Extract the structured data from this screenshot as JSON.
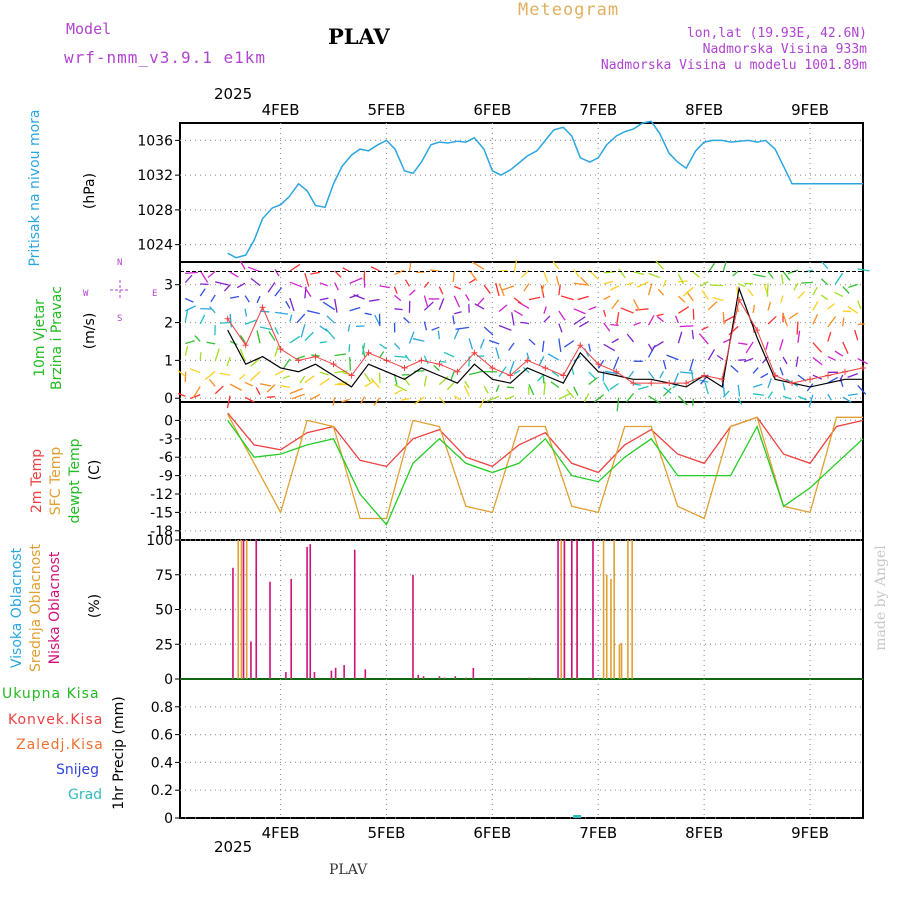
{
  "header": {
    "model_label": "Model",
    "model_name": "wrf-nmm_v3.9.1 e1km",
    "station": "PLAV",
    "meteogram": "Meteogram",
    "lonlat": "lon,lat (19.93E, 42.6N)",
    "elev": "Nadmorska Visina 933m",
    "elev_model": "Nadmorska Visina u modelu 1001.89m"
  },
  "footer": {
    "station": "PLAV",
    "credit": "made by Angel"
  },
  "colors": {
    "pressure": "#2aa6e0",
    "temp": "#ee4040",
    "sfc": "#e0a030",
    "dew": "#22cc22",
    "wind_speed": "#000000",
    "gust": "#ee4040",
    "high_cloud": "#2aa6e0",
    "mid_cloud": "#e0a030",
    "low_cloud": "#d0107a",
    "purple": "#b044d0"
  },
  "chart_data": [
    {
      "type": "line",
      "panel": "pressure",
      "ylabel_main": "Pritisak na nivou mora",
      "ylabel_unit": "(hPa)",
      "yticks": [
        1024,
        1028,
        1032,
        1036
      ],
      "ylim": [
        1022,
        1038
      ],
      "x": [
        0,
        0.08,
        0.17,
        0.25,
        0.33,
        0.42,
        0.5,
        0.58,
        0.67,
        0.75,
        0.83,
        0.92,
        1.0,
        1.08,
        1.17,
        1.25,
        1.33,
        1.42,
        1.5,
        1.58,
        1.67,
        1.75,
        1.83,
        1.92,
        2.0,
        2.08,
        2.17,
        2.25,
        2.33,
        2.42,
        2.5,
        2.58,
        2.67,
        2.75,
        2.83,
        2.92,
        3.0,
        3.08,
        3.17,
        3.25,
        3.33,
        3.42,
        3.5,
        3.58,
        3.67,
        3.75,
        3.83,
        3.92,
        4.0,
        4.08,
        4.17,
        4.25,
        4.33,
        4.42,
        4.5,
        4.58,
        4.67,
        4.75,
        4.83,
        4.92,
        5.0,
        5.08,
        5.17,
        5.25,
        5.33,
        5.42,
        5.5,
        5.58,
        5.67,
        5.75,
        5.83,
        5.92,
        6.0
      ],
      "series": [
        {
          "name": "Pritisak na nivou mora",
          "color": "pressure",
          "values": [
            1023,
            1022.5,
            1022.8,
            1024.5,
            1027,
            1028.2,
            1028.6,
            1029.5,
            1031,
            1030.2,
            1028.5,
            1028.3,
            1031,
            1033,
            1034.3,
            1035,
            1034.8,
            1035.5,
            1036,
            1035,
            1032.5,
            1032.2,
            1033.5,
            1035.5,
            1035.8,
            1035.7,
            1035.9,
            1035.8,
            1036.3,
            1035,
            1032.5,
            1032,
            1032.6,
            1033.4,
            1034.2,
            1034.8,
            1036,
            1037.2,
            1037.5,
            1036.5,
            1034,
            1033.5,
            1034,
            1035.5,
            1036.5,
            1037,
            1037.3,
            1038,
            1038.2,
            1036.8,
            1034.5,
            1033.5,
            1032.8,
            1034.8,
            1035.8,
            1036,
            1036,
            1035.8,
            1035.9,
            1036,
            1035.8,
            1036,
            1035,
            1033,
            1031,
            1031,
            1031,
            1031,
            1031,
            1031,
            1031,
            1031,
            1031
          ]
        }
      ]
    },
    {
      "type": "line",
      "panel": "wind",
      "ylabel_main": "10m Vjetar",
      "ylabel_sub": "Brzina i Pravac",
      "ylabel_unit": "(m/s)",
      "compass": {
        "n": "N",
        "s": "S",
        "e": "E",
        "w": "W"
      },
      "yticks": [
        0,
        1,
        2,
        3
      ],
      "ylim": [
        -0.1,
        3.6
      ],
      "x": [
        0,
        0.17,
        0.33,
        0.5,
        0.67,
        0.83,
        1.0,
        1.17,
        1.33,
        1.5,
        1.67,
        1.83,
        2.0,
        2.17,
        2.33,
        2.5,
        2.67,
        2.83,
        3.0,
        3.17,
        3.33,
        3.5,
        3.67,
        3.83,
        4.0,
        4.17,
        4.33,
        4.5,
        4.67,
        4.83,
        5.0,
        5.17,
        5.33,
        5.5,
        5.67,
        5.83,
        6.0
      ],
      "series": [
        {
          "name": "wind speed",
          "color": "wind_speed",
          "values": [
            1.8,
            0.9,
            1.1,
            0.8,
            0.7,
            0.9,
            0.6,
            0.3,
            0.9,
            0.7,
            0.5,
            0.8,
            0.6,
            0.4,
            0.9,
            0.5,
            0.4,
            0.8,
            0.6,
            0.4,
            1.2,
            0.7,
            0.6,
            0.5,
            0.5,
            0.4,
            0.3,
            0.6,
            0.3,
            2.9,
            1.6,
            0.5,
            0.4,
            0.3,
            0.4,
            0.5,
            0.5
          ]
        },
        {
          "name": "gust",
          "color": "gust",
          "values": [
            2.1,
            1.4,
            2.4,
            1.3,
            1.0,
            1.1,
            0.9,
            0.6,
            1.2,
            1.0,
            0.8,
            1.0,
            0.9,
            0.7,
            1.2,
            0.8,
            0.6,
            1.0,
            0.8,
            0.6,
            1.4,
            0.9,
            0.7,
            0.4,
            0.4,
            0.4,
            0.4,
            0.6,
            0.5,
            2.6,
            1.8,
            0.6,
            0.4,
            0.5,
            0.6,
            0.7,
            0.8
          ]
        }
      ]
    },
    {
      "type": "line",
      "panel": "temperature",
      "ylabel_main": "2m Temp",
      "ylabel_sub": "SFC Temp",
      "ylabel_sub2": "dewpt Temp",
      "ylabel_unit": "(C)",
      "yticks": [
        0,
        -3,
        -6,
        -9,
        -12,
        -15,
        -18
      ],
      "ylim": [
        -19.5,
        3
      ],
      "x": [
        0,
        0.25,
        0.5,
        0.75,
        1.0,
        1.25,
        1.5,
        1.75,
        2.0,
        2.25,
        2.5,
        2.75,
        3.0,
        3.25,
        3.5,
        3.75,
        4.0,
        4.25,
        4.5,
        4.75,
        5.0,
        5.25,
        5.5,
        5.75,
        6.0
      ],
      "series": [
        {
          "name": "2m Temp",
          "color": "temp",
          "values": [
            1.2,
            -4,
            -4.8,
            -2,
            -1,
            -6.5,
            -7.5,
            -3,
            -1.5,
            -6,
            -7.5,
            -4,
            -2,
            -7,
            -8.5,
            -4,
            -1.5,
            -5.5,
            -7,
            -1,
            0.5,
            -5.5,
            -7,
            -1,
            0
          ]
        },
        {
          "name": "SFC Temp",
          "color": "sfc",
          "values": [
            1,
            -7,
            -15,
            0,
            -1,
            -16,
            -16,
            0,
            -1,
            -14,
            -15,
            -1,
            -1,
            -14,
            -15,
            -1,
            -1,
            -14,
            -16,
            -1,
            0.5,
            -14,
            -15,
            0.5,
            0.5
          ]
        },
        {
          "name": "dewpt Temp",
          "color": "dew",
          "values": [
            0,
            -6,
            -5.5,
            -4,
            -3,
            -12,
            -17,
            -7,
            -3,
            -7,
            -8.5,
            -7,
            -3,
            -9,
            -10,
            -6,
            -3,
            -9,
            -9,
            -9,
            -1,
            -14,
            -11,
            -7,
            -3
          ]
        }
      ]
    },
    {
      "type": "bar",
      "panel": "cloud",
      "ylabel_main": "Visoka Oblacnost",
      "ylabel_sub": "Srednja Oblacnost",
      "ylabel_sub2": "Niska Oblacnost",
      "ylabel_unit": "(%)",
      "yticks": [
        0,
        25,
        50,
        75,
        100
      ],
      "ylim": [
        0,
        100
      ],
      "series": [
        {
          "name": "Srednja Oblacnost",
          "color": "mid_cloud",
          "x": [
            0.1,
            0.13,
            0.18,
            3.15,
            3.18,
            3.25,
            3.3,
            3.55,
            3.58,
            3.62,
            3.65,
            3.7,
            3.72,
            3.78,
            3.82
          ],
          "values": [
            100,
            100,
            100,
            100,
            100,
            100,
            100,
            100,
            75,
            72,
            100,
            25,
            26,
            100,
            100
          ]
        },
        {
          "name": "Niska Oblacnost",
          "color": "low_cloud",
          "x": [
            0.05,
            0.15,
            0.22,
            0.27,
            0.4,
            0.55,
            0.6,
            0.75,
            0.78,
            0.82,
            0.98,
            1.02,
            1.1,
            1.2,
            1.3,
            1.75,
            1.8,
            1.85,
            2.0,
            2.05,
            2.15,
            2.25,
            2.32,
            2.85,
            3.12,
            3.18,
            3.25,
            3.3,
            3.45
          ],
          "values": [
            80,
            100,
            27,
            100,
            70,
            5,
            72,
            95,
            97,
            5,
            6,
            8,
            10,
            93,
            7,
            75,
            3,
            2,
            2,
            1,
            2,
            1,
            8,
            1,
            100,
            100,
            100,
            100,
            100
          ]
        }
      ]
    },
    {
      "type": "bar",
      "panel": "precip",
      "ylabel_main": "1hr Precip (mm)",
      "legend": [
        "Ukupna Kisa",
        "Konvek.Kisa",
        "Zaledj.Kisa",
        "Snijeg",
        "Grad"
      ],
      "yticks": [
        0,
        0.2,
        0.4,
        0.6,
        0.8
      ],
      "ylim": [
        0,
        1.0
      ],
      "series": [
        {
          "name": "Grad",
          "color": "#33bbbb",
          "x": [
            3.3
          ],
          "values": [
            0.01
          ]
        }
      ]
    }
  ],
  "xaxis": {
    "labels": [
      "4FEB",
      "5FEB",
      "6FEB",
      "7FEB",
      "8FEB",
      "9FEB"
    ],
    "positions": [
      0.5,
      1.5,
      2.5,
      3.5,
      4.5,
      5.5
    ],
    "year": "2025"
  }
}
